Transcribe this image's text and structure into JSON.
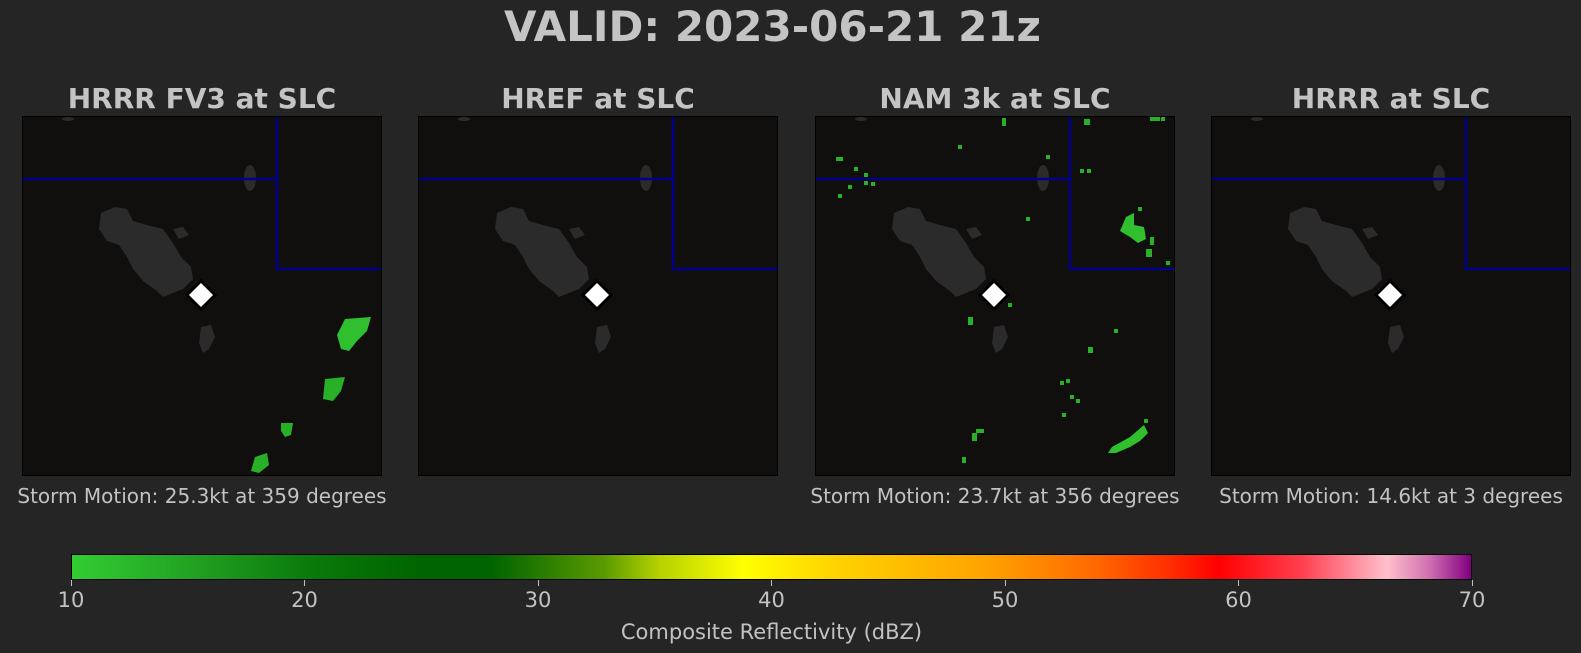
{
  "main_title": "VALID: 2023-06-21 21z",
  "panels": [
    {
      "title": "HRRR FV3 at SLC",
      "storm_motion": "Storm Motion: 25.3kt at 359 degrees"
    },
    {
      "title": "HREF at SLC",
      "storm_motion": ""
    },
    {
      "title": "NAM 3k at SLC",
      "storm_motion": "Storm Motion: 23.7kt at 356 degrees"
    },
    {
      "title": "HRRR at SLC",
      "storm_motion": "Storm Motion: 14.6kt at 3 degrees"
    }
  ],
  "colorbar": {
    "label": "Composite Reflectivity (dBZ)",
    "ticks": [
      "10",
      "20",
      "30",
      "40",
      "50",
      "60",
      "70"
    ],
    "range": [
      10,
      70
    ],
    "colors": {
      "low": "#32cd32",
      "mid_green": "#006400",
      "yellow": "#ffff00",
      "orange": "#ffa500",
      "red": "#ff0000",
      "pink": "#ffc0cb",
      "purple": "#800080"
    }
  },
  "map_style": {
    "background": "#110e0e",
    "lake_color": "#2b2b2b",
    "border_color": "#00008b",
    "station_marker": "white-diamond"
  }
}
